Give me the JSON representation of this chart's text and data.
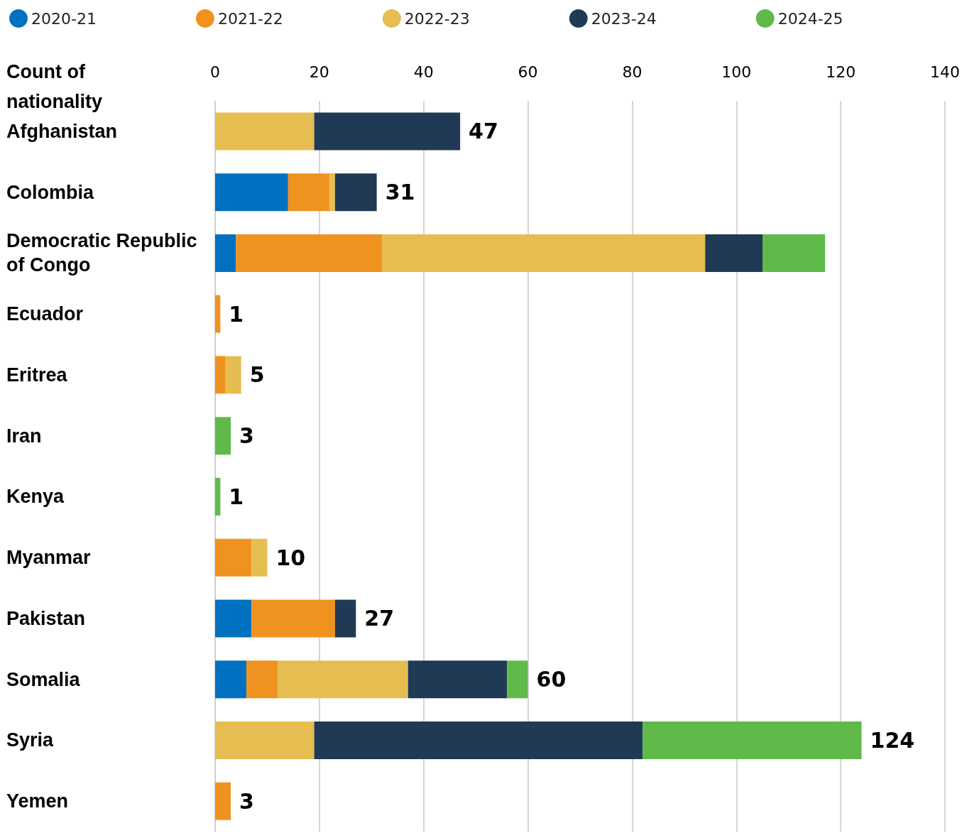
{
  "chart_data": {
    "type": "bar",
    "orientation": "horizontal",
    "stacked": true,
    "ylabel": "Count of nationality",
    "categories": [
      "Afghanistan",
      "Colombia",
      "Democratic Republic of Congo",
      "Ecuador",
      "Eritrea",
      "Iran",
      "Kenya",
      "Myanmar",
      "Pakistan",
      "Somalia",
      "Syria",
      "Yemen"
    ],
    "series": [
      {
        "name": "2020-21",
        "color": "#0070c0",
        "values": [
          0,
          14,
          4,
          0,
          0,
          0,
          0,
          0,
          7,
          6,
          0,
          0
        ]
      },
      {
        "name": "2021-22",
        "color": "#f0921f",
        "values": [
          0,
          8,
          28,
          1,
          2,
          0,
          0,
          7,
          16,
          6,
          0,
          3
        ]
      },
      {
        "name": "2022-23",
        "color": "#e6bd50",
        "values": [
          19,
          1,
          62,
          0,
          3,
          0,
          0,
          3,
          0,
          25,
          19,
          0
        ]
      },
      {
        "name": "2023-24",
        "color": "#203a55",
        "values": [
          28,
          8,
          11,
          0,
          0,
          0,
          0,
          0,
          4,
          19,
          63,
          0
        ]
      },
      {
        "name": "2024-25",
        "color": "#5fba4a",
        "values": [
          0,
          0,
          12,
          0,
          0,
          3,
          1,
          0,
          0,
          4,
          42,
          0
        ]
      }
    ],
    "totals": [
      "47",
      "31",
      null,
      "1",
      "5",
      "3",
      "1",
      "10",
      "27",
      "60",
      "124",
      "3"
    ],
    "xlim": [
      0,
      140
    ],
    "xticks": [
      0,
      20,
      40,
      60,
      80,
      100,
      120,
      140
    ],
    "grid": "x",
    "legend": "top"
  }
}
